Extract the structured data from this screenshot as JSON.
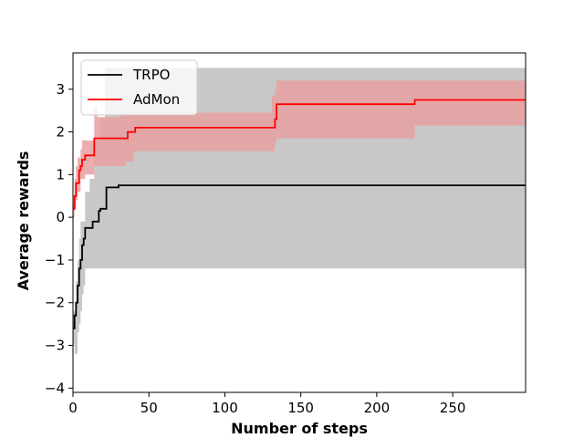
{
  "chart_data": {
    "type": "line",
    "xlabel": "Number of steps",
    "ylabel": "Average rewards",
    "xlim": [
      0,
      298
    ],
    "ylim": [
      -4.1,
      3.85
    ],
    "xticks": [
      0,
      50,
      100,
      150,
      200,
      250
    ],
    "yticks": [
      -4,
      -3,
      -2,
      -1,
      0,
      1,
      2,
      3
    ],
    "grid": false,
    "legend_position": "top-left",
    "series": [
      {
        "name": "TRPO",
        "color": "#000000",
        "band_color": "#c8c8c8",
        "mean": [
          [
            0,
            -2.6
          ],
          [
            1,
            -2.3
          ],
          [
            2,
            -2.0
          ],
          [
            3,
            -1.6
          ],
          [
            4,
            -1.2
          ],
          [
            5,
            -1.0
          ],
          [
            6,
            -0.65
          ],
          [
            7,
            -0.5
          ],
          [
            8,
            -0.25
          ],
          [
            12,
            -0.25
          ],
          [
            13,
            -0.1
          ],
          [
            16,
            -0.1
          ],
          [
            17,
            0.15
          ],
          [
            18,
            0.2
          ],
          [
            21,
            0.2
          ],
          [
            22,
            0.7
          ],
          [
            29,
            0.7
          ],
          [
            30,
            0.75
          ],
          [
            298,
            0.75
          ]
        ],
        "upper": [
          [
            0,
            -2.2
          ],
          [
            2,
            -1.5
          ],
          [
            3,
            -1.0
          ],
          [
            4,
            -0.5
          ],
          [
            5,
            -0.1
          ],
          [
            7,
            -0.1
          ],
          [
            8,
            0.6
          ],
          [
            10,
            0.6
          ],
          [
            11,
            0.9
          ],
          [
            13,
            0.9
          ],
          [
            14,
            1.8
          ],
          [
            17,
            1.8
          ],
          [
            18,
            2.3
          ],
          [
            20,
            2.3
          ],
          [
            21,
            3.5
          ],
          [
            298,
            3.5
          ]
        ],
        "lower": [
          [
            0,
            -3.0
          ],
          [
            1,
            -3.2
          ],
          [
            3,
            -2.7
          ],
          [
            4,
            -2.5
          ],
          [
            5,
            -2.2
          ],
          [
            6,
            -1.8
          ],
          [
            7,
            -1.6
          ],
          [
            8,
            -1.2
          ],
          [
            298,
            -1.2
          ]
        ]
      },
      {
        "name": "AdMon",
        "color": "#ff0000",
        "band_color": "#e8a0a0",
        "mean": [
          [
            0,
            0.2
          ],
          [
            1,
            0.5
          ],
          [
            2,
            0.8
          ],
          [
            3,
            0.8
          ],
          [
            4,
            1.1
          ],
          [
            5,
            1.2
          ],
          [
            6,
            1.35
          ],
          [
            7,
            1.35
          ],
          [
            8,
            1.45
          ],
          [
            13,
            1.45
          ],
          [
            14,
            1.85
          ],
          [
            35,
            1.85
          ],
          [
            36,
            2.0
          ],
          [
            40,
            2.0
          ],
          [
            41,
            2.1
          ],
          [
            132,
            2.1
          ],
          [
            133,
            2.3
          ],
          [
            134,
            2.65
          ],
          [
            224,
            2.65
          ],
          [
            225,
            2.75
          ],
          [
            298,
            2.75
          ]
        ],
        "upper": [
          [
            0,
            0.3
          ],
          [
            1,
            0.9
          ],
          [
            2,
            1.2
          ],
          [
            3,
            1.4
          ],
          [
            5,
            1.6
          ],
          [
            6,
            1.8
          ],
          [
            13,
            1.8
          ],
          [
            14,
            2.6
          ],
          [
            15,
            2.6
          ],
          [
            16,
            2.35
          ],
          [
            30,
            2.35
          ],
          [
            31,
            2.45
          ],
          [
            130,
            2.45
          ],
          [
            131,
            2.85
          ],
          [
            133,
            3.0
          ],
          [
            134,
            3.2
          ],
          [
            298,
            3.2
          ]
        ],
        "lower": [
          [
            0,
            0.0
          ],
          [
            1,
            0.2
          ],
          [
            2,
            0.4
          ],
          [
            3,
            0.6
          ],
          [
            5,
            0.9
          ],
          [
            7,
            0.9
          ],
          [
            8,
            1.0
          ],
          [
            13,
            1.0
          ],
          [
            14,
            1.2
          ],
          [
            34,
            1.2
          ],
          [
            35,
            1.3
          ],
          [
            39,
            1.3
          ],
          [
            40,
            1.55
          ],
          [
            132,
            1.55
          ],
          [
            133,
            1.75
          ],
          [
            134,
            1.85
          ],
          [
            224,
            1.85
          ],
          [
            225,
            2.15
          ],
          [
            298,
            2.15
          ]
        ]
      }
    ]
  }
}
